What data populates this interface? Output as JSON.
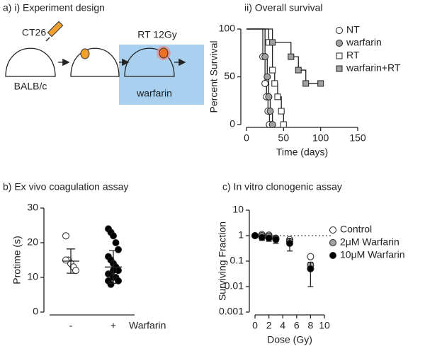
{
  "panel_a_title": "a)  i) Experiment design",
  "diagram": {
    "cell_line": "CT26",
    "mouse": "BALB/c",
    "treatment": "RT 12Gy",
    "drug": "warfarin"
  },
  "chart_data": [
    {
      "type": "line",
      "step": true,
      "title": "ii) Overall survival",
      "xlabel": "Time (days)",
      "ylabel": "Percent Survival",
      "xlim": [
        0,
        150
      ],
      "xticks": [
        0,
        50,
        100,
        150
      ],
      "ylim": [
        0,
        100
      ],
      "yticks": [
        0,
        50,
        100
      ],
      "series": [
        {
          "name": "NT",
          "color": "#ffffff",
          "marker": "circle",
          "x": [
            0,
            22,
            25,
            27,
            29,
            31
          ],
          "values": [
            100,
            71,
            43,
            29,
            14,
            0
          ]
        },
        {
          "name": "warfarin",
          "color": "#a0a0a0",
          "marker": "circle",
          "x": [
            0,
            25,
            28,
            30,
            32,
            35
          ],
          "values": [
            100,
            71,
            50,
            29,
            14,
            0
          ]
        },
        {
          "name": "RT",
          "color": "#ffffff",
          "marker": "square",
          "x": [
            0,
            30,
            35,
            38,
            42,
            47,
            50
          ],
          "values": [
            100,
            86,
            57,
            43,
            29,
            14,
            0
          ]
        },
        {
          "name": "warfarin+RT",
          "color": "#a0a0a0",
          "marker": "square",
          "x": [
            0,
            35,
            60,
            70,
            80,
            100
          ],
          "values": [
            100,
            86,
            71,
            57,
            43,
            43
          ]
        }
      ]
    },
    {
      "type": "strip",
      "title": "b) Ex vivo coagulation assay",
      "ylabel": "Protime (s)",
      "group_label": "Warfarin",
      "categories": [
        "-",
        "+"
      ],
      "ylim": [
        0,
        30
      ],
      "yticks": [
        0,
        10,
        20,
        30
      ],
      "series": [
        {
          "color": "#ffffff",
          "values": [
            22,
            15,
            14,
            13,
            12,
            15
          ],
          "mean": 14.7,
          "sd": 3.5
        },
        {
          "color": "#000000",
          "values": [
            24,
            23,
            22,
            20,
            18,
            16,
            15,
            14,
            13,
            12,
            11,
            11,
            10,
            10,
            9,
            9,
            8,
            12
          ],
          "mean": 13,
          "sd": 4.7
        }
      ]
    },
    {
      "type": "scatter",
      "log_y": true,
      "title": "c) In vitro clonogenic assay",
      "xlabel": "Dose (Gy)",
      "ylabel": "Surviving Fraction",
      "xlim": [
        0,
        10
      ],
      "xticks": [
        0,
        2,
        4,
        6,
        8,
        10
      ],
      "ylim": [
        0.001,
        10
      ],
      "yticks": [
        0.001,
        0.01,
        0.1,
        1,
        10
      ],
      "reference_line": 1,
      "series": [
        {
          "name": "Control",
          "color": "#ffffff",
          "x": [
            0,
            1,
            2,
            3,
            5,
            8
          ],
          "values": [
            1,
            1.1,
            1.05,
            0.8,
            0.7,
            0.15
          ]
        },
        {
          "name": "2μM Warfarin",
          "color": "#a0a0a0",
          "x": [
            0,
            1,
            2,
            3,
            5,
            8
          ],
          "values": [
            1,
            1.0,
            0.95,
            0.75,
            0.6,
            0.07
          ]
        },
        {
          "name": "10μM Warfarin",
          "color": "#000000",
          "x": [
            0,
            1,
            2,
            3,
            5,
            8
          ],
          "values": [
            1,
            0.85,
            0.8,
            0.7,
            0.5,
            0.05
          ],
          "errors": [
            0.1,
            0.2,
            0.2,
            0.2,
            0.25,
            0.04
          ]
        }
      ]
    }
  ]
}
